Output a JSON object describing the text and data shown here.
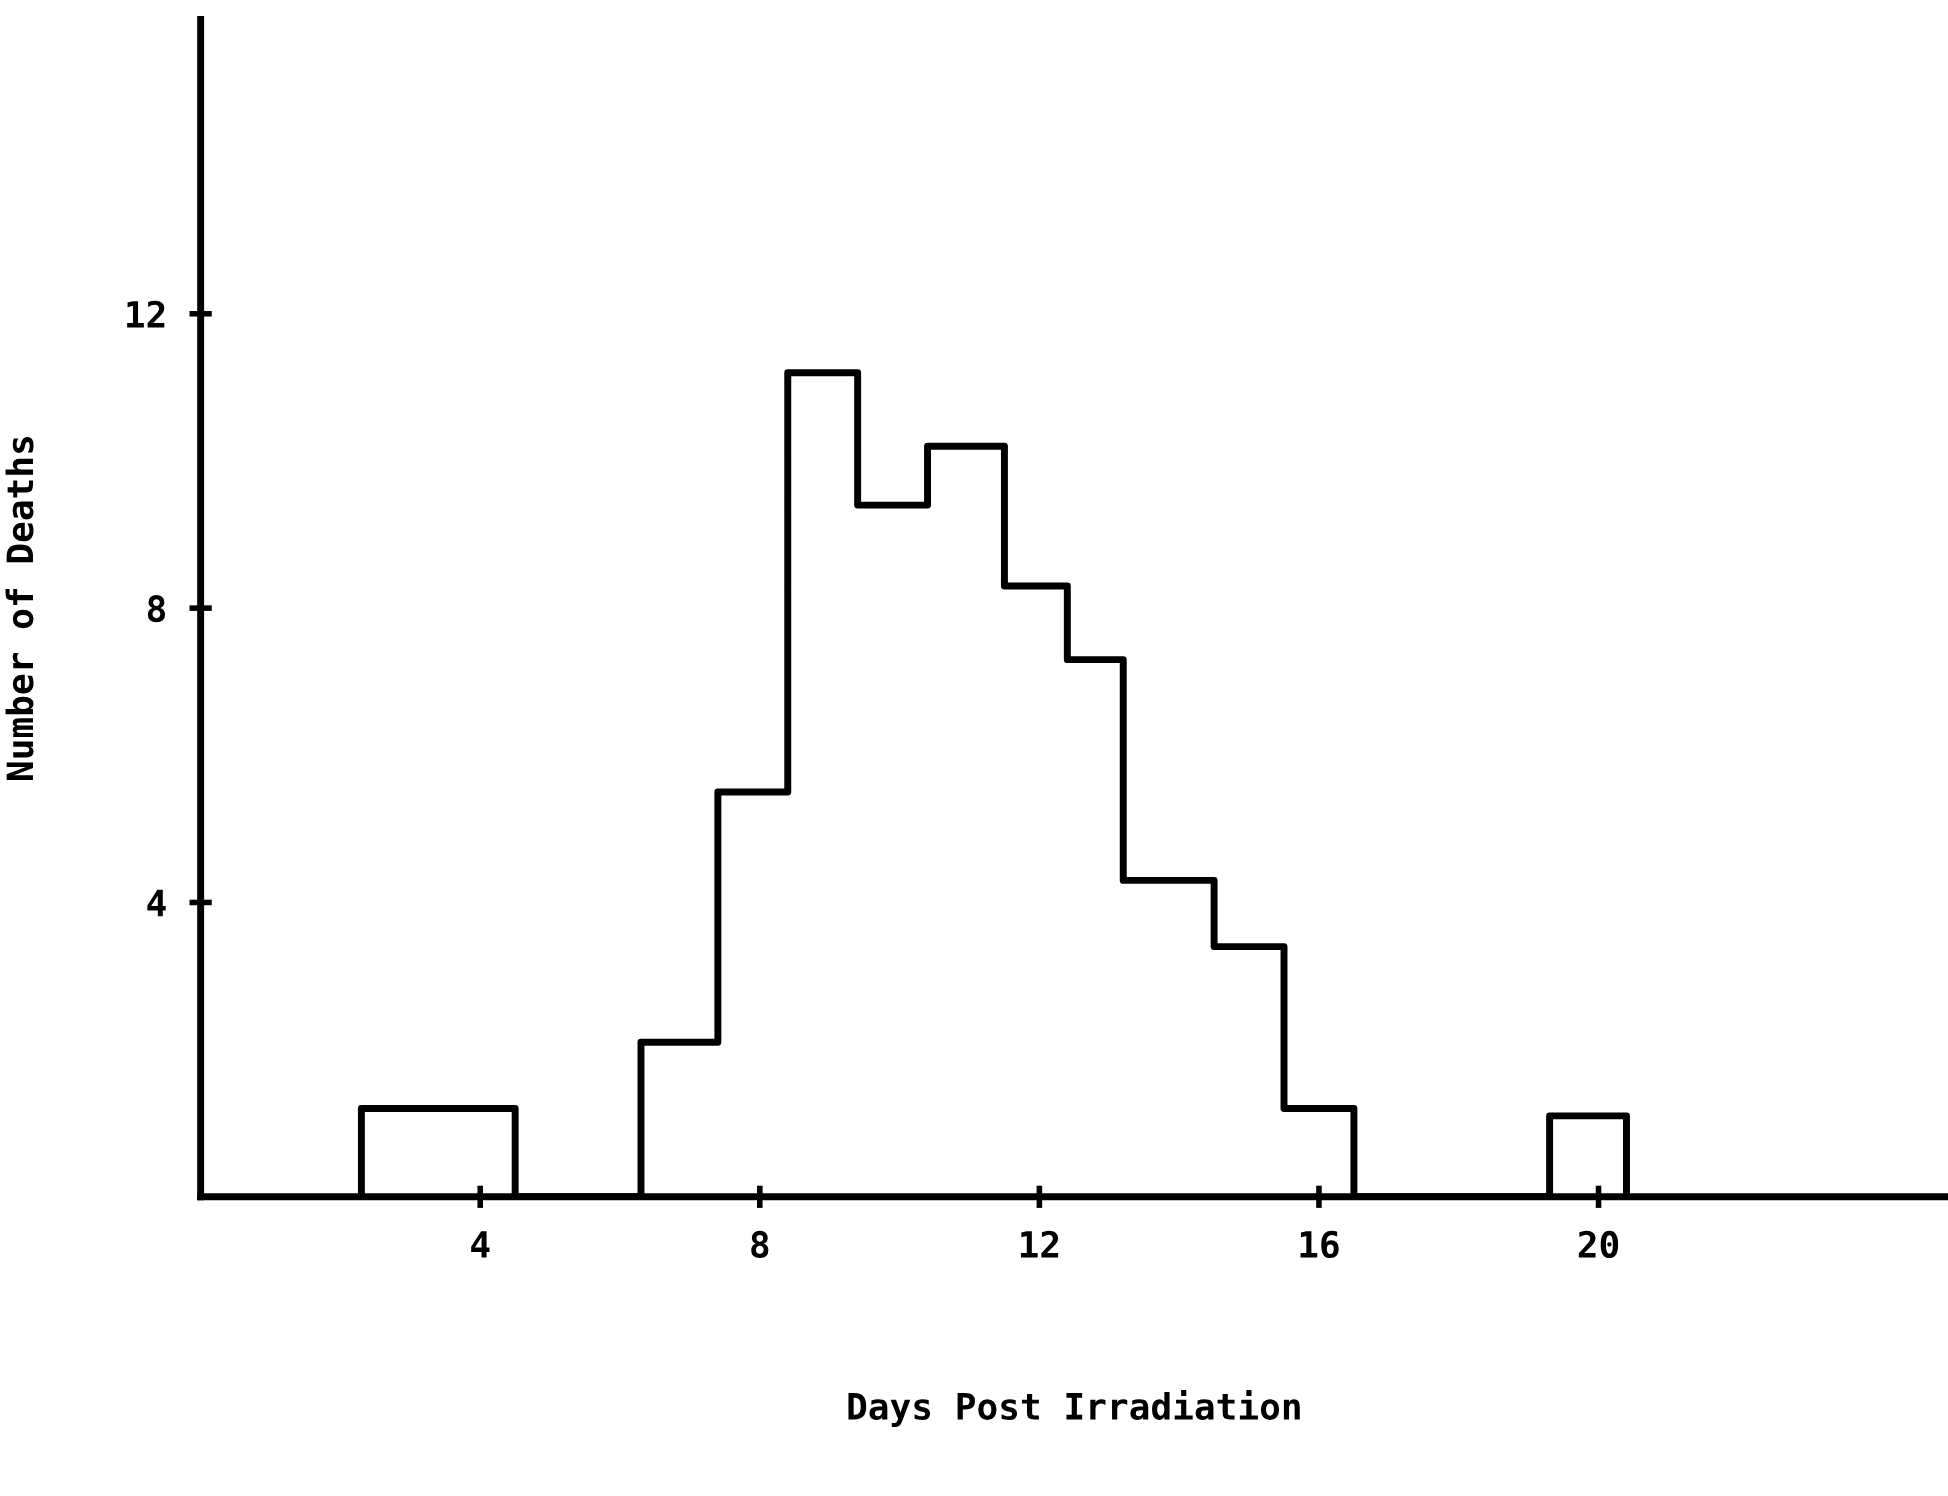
{
  "chart_data": {
    "type": "histogram",
    "xlabel": "Days Post Irradiation",
    "ylabel": "Number of Deaths",
    "bins": [
      2.3,
      4.5,
      6.3,
      7.4,
      8.4,
      9.4,
      10.4,
      11.5,
      12.4,
      13.2,
      14.5,
      15.5,
      16.5,
      19.3,
      20.4
    ],
    "values": [
      1.2,
      0,
      2.1,
      5.5,
      11.2,
      9.4,
      10.2,
      8.3,
      7.3,
      4.3,
      3.4,
      1.2,
      0,
      1.1
    ],
    "color": "#000000",
    "xlim": [
      0,
      25
    ],
    "xticks": [
      4,
      8,
      12,
      16,
      20
    ],
    "ylim": [
      0,
      16
    ],
    "yticks": [
      4,
      8,
      12
    ],
    "grid": false,
    "legend": false
  }
}
